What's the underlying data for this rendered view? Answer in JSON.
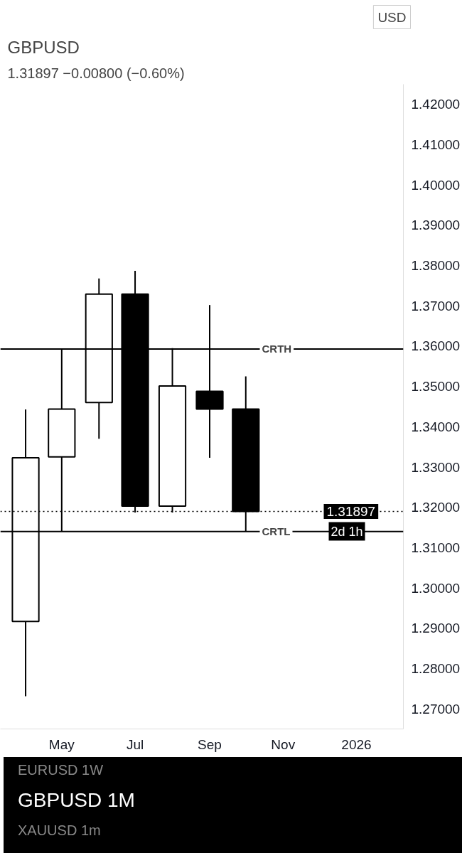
{
  "chart_data": {
    "type": "candlestick",
    "title": "GBPUSD",
    "subtitle": "1.31897 −0.00800 (−0.60%)",
    "x": [
      "2025-04",
      "2025-05",
      "2025-06",
      "2025-07",
      "2025-08",
      "2025-09",
      "2025-10"
    ],
    "ohlc": [
      [
        1.2917,
        1.3443,
        1.2731,
        1.3323
      ],
      [
        1.3325,
        1.3592,
        1.314,
        1.3444
      ],
      [
        1.346,
        1.3768,
        1.337,
        1.3729
      ],
      [
        1.3729,
        1.3787,
        1.3187,
        1.3203
      ],
      [
        1.3203,
        1.3595,
        1.3187,
        1.3501
      ],
      [
        1.3488,
        1.3702,
        1.3323,
        1.3444
      ],
      [
        1.3444,
        1.3525,
        1.314,
        1.31897
      ]
    ],
    "colors": [
      "#ffffff",
      "#ffffff",
      "#ffffff",
      "#000000",
      "#ffffff",
      "#000000",
      "#000000"
    ],
    "xlim": [
      "2025-03-11",
      "2026-02-09"
    ],
    "xticks": [
      {
        "value": "2025-05",
        "label": "May"
      },
      {
        "value": "2025-07",
        "label": "Jul"
      },
      {
        "value": "2025-09",
        "label": "Sep"
      },
      {
        "value": "2025-11",
        "label": "Nov"
      },
      {
        "value": "2026-01",
        "label": "2026"
      }
    ],
    "ylim": [
      1.265,
      1.425
    ],
    "yticks": [
      {
        "value": 1.27,
        "label": "1.27000"
      },
      {
        "value": 1.28,
        "label": "1.28000"
      },
      {
        "value": 1.29,
        "label": "1.29000"
      },
      {
        "value": 1.3,
        "label": "1.30000"
      },
      {
        "value": 1.31,
        "label": "1.31000"
      },
      {
        "value": 1.32,
        "label": "1.32000"
      },
      {
        "value": 1.33,
        "label": "1.33000"
      },
      {
        "value": 1.34,
        "label": "1.34000"
      },
      {
        "value": 1.35,
        "label": "1.35000"
      },
      {
        "value": 1.36,
        "label": "1.36000"
      },
      {
        "value": 1.37,
        "label": "1.37000"
      },
      {
        "value": 1.38,
        "label": "1.38000"
      },
      {
        "value": 1.39,
        "label": "1.39000"
      },
      {
        "value": 1.4,
        "label": "1.40000"
      },
      {
        "value": 1.41,
        "label": "1.41000"
      },
      {
        "value": 1.42,
        "label": "1.42000"
      }
    ],
    "ref_lines": [
      {
        "axis": "y",
        "value": 1.3593,
        "label": "CRTH",
        "color": "#000000",
        "line_style": "solid"
      },
      {
        "axis": "y",
        "value": 1.314,
        "label": "CRTL",
        "color": "#000000",
        "line_style": "solid"
      },
      {
        "axis": "y",
        "value": 1.31897,
        "label": "1.31897",
        "color": "#000000",
        "line_style": "dotted"
      }
    ],
    "annotations": [
      "2d 1h",
      "USD",
      "EURUSD 1W",
      "GBPUSD 1M",
      "XAUUSD 1m"
    ],
    "grid": false
  }
}
